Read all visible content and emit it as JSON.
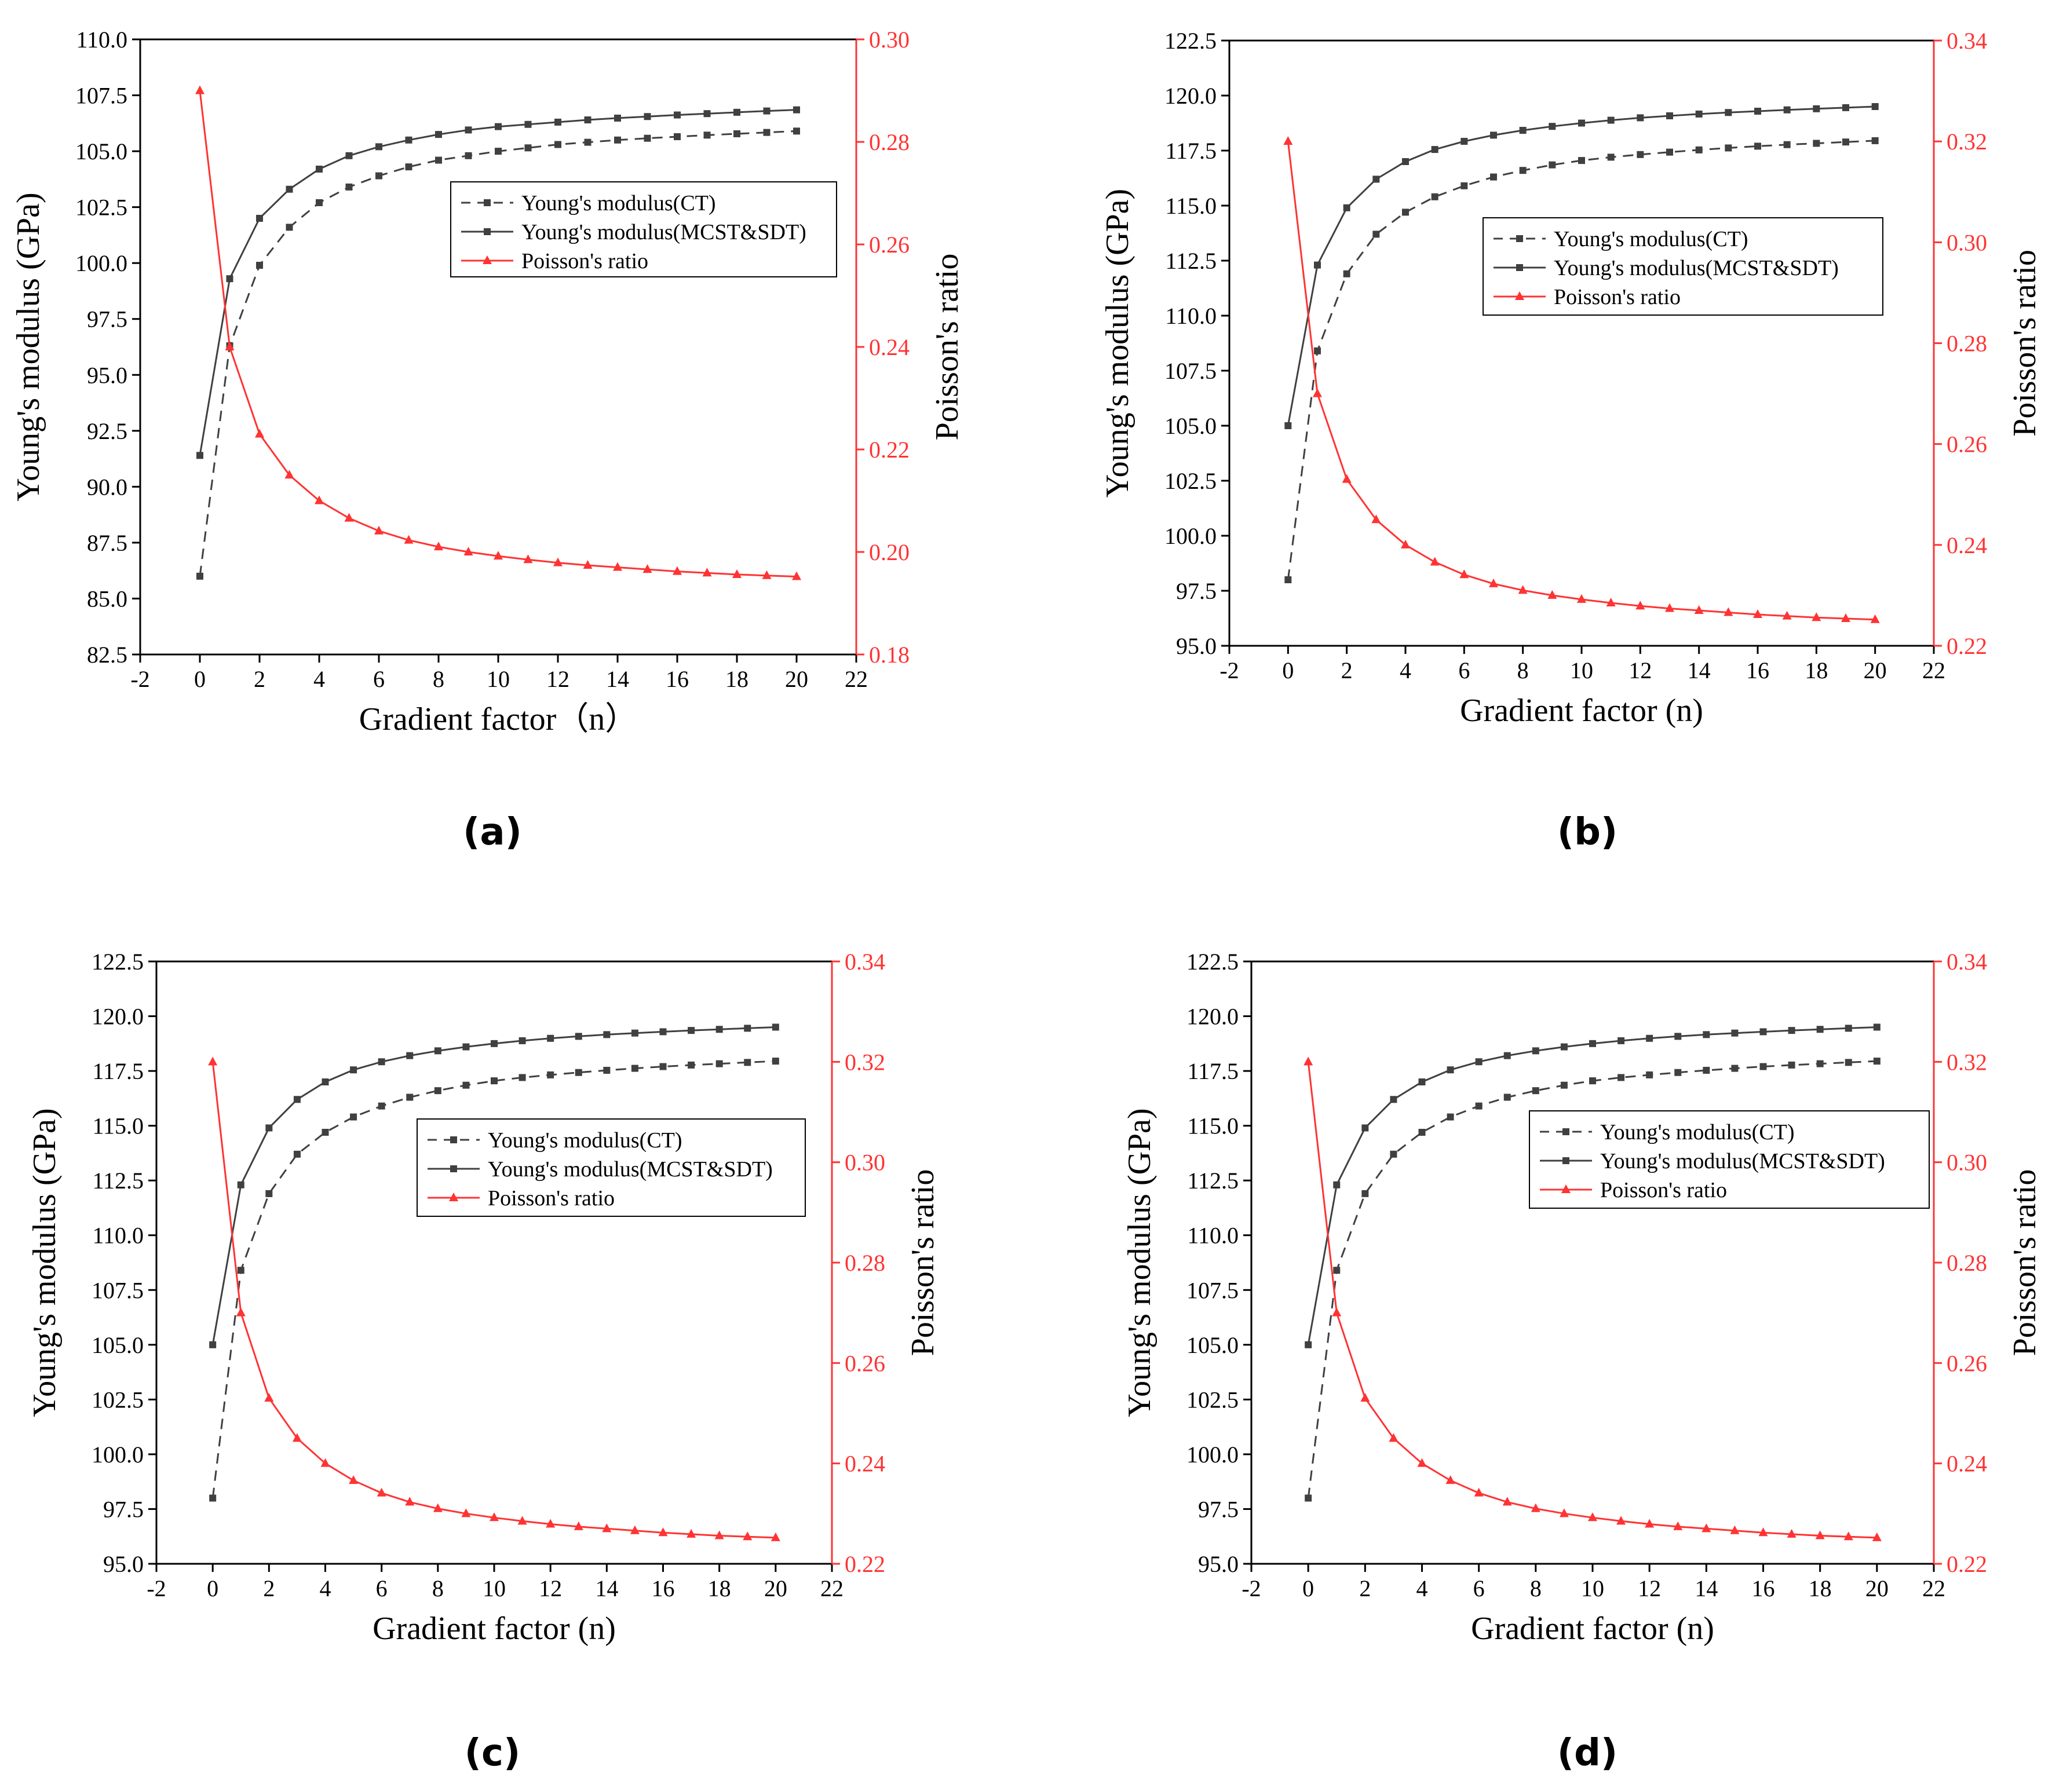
{
  "figure": {
    "captions": [
      "(a)",
      "(b)",
      "(c)",
      "(d)"
    ]
  },
  "chart_data": [
    {
      "id": "a",
      "type": "line",
      "xlabel": "Gradient factor（n）",
      "ylabel": "Young's modulus (GPa)",
      "y2label": "Poisson's ratio",
      "xlim": [
        -2,
        22
      ],
      "xticks": [
        -2,
        0,
        2,
        4,
        6,
        8,
        10,
        12,
        14,
        16,
        18,
        20,
        22
      ],
      "ylim": [
        82.5,
        110.0
      ],
      "yticks": [
        "82.5",
        "85.0",
        "87.5",
        "90.0",
        "92.5",
        "95.0",
        "97.5",
        "100.0",
        "102.5",
        "105.0",
        "107.5",
        "110.0"
      ],
      "y2lim": [
        0.18,
        0.3
      ],
      "y2ticks": [
        "0.18",
        "0.20",
        "0.22",
        "0.24",
        "0.26",
        "0.28",
        "0.30"
      ],
      "legend_position": "center-right",
      "x": [
        0,
        1,
        2,
        3,
        4,
        5,
        6,
        7,
        8,
        9,
        10,
        11,
        12,
        13,
        14,
        15,
        16,
        17,
        18,
        19,
        20
      ],
      "series": [
        {
          "name": "Young's modulus(CT)",
          "axis": "left",
          "style": "dashed",
          "marker": "square",
          "color": "#404040",
          "values": [
            86.0,
            96.3,
            99.9,
            101.6,
            102.7,
            103.4,
            103.9,
            104.3,
            104.6,
            104.8,
            105.0,
            105.15,
            105.3,
            105.4,
            105.5,
            105.58,
            105.65,
            105.72,
            105.78,
            105.84,
            105.9
          ]
        },
        {
          "name": "Young's modulus(MCST&SDT)",
          "axis": "left",
          "style": "solid",
          "marker": "square",
          "color": "#404040",
          "values": [
            91.4,
            99.3,
            102.0,
            103.3,
            104.2,
            104.8,
            105.2,
            105.5,
            105.75,
            105.95,
            106.1,
            106.2,
            106.3,
            106.4,
            106.48,
            106.55,
            106.62,
            106.68,
            106.74,
            106.8,
            106.85
          ]
        },
        {
          "name": "Poisson's ratio",
          "axis": "right",
          "style": "solid",
          "marker": "triangle",
          "color": "#ff3333",
          "values": [
            0.29,
            0.24,
            0.223,
            0.215,
            0.21,
            0.2066,
            0.2041,
            0.2023,
            0.201,
            0.2,
            0.1992,
            0.1985,
            0.1979,
            0.1974,
            0.197,
            0.1966,
            0.1962,
            0.1959,
            0.1956,
            0.1954,
            0.1952
          ]
        }
      ]
    },
    {
      "id": "b",
      "type": "line",
      "xlabel": "Gradient factor (n)",
      "ylabel": "Young's modulus (GPa)",
      "y2label": "Poisson's ratio",
      "xlim": [
        -2,
        22
      ],
      "xticks": [
        -2,
        0,
        2,
        4,
        6,
        8,
        10,
        12,
        14,
        16,
        18,
        20,
        22
      ],
      "ylim": [
        95.0,
        122.5
      ],
      "yticks": [
        "95.0",
        "97.5",
        "100.0",
        "102.5",
        "105.0",
        "107.5",
        "110.0",
        "112.5",
        "115.0",
        "117.5",
        "120.0",
        "122.5"
      ],
      "y2lim": [
        0.22,
        0.34
      ],
      "y2ticks": [
        "0.22",
        "0.24",
        "0.26",
        "0.28",
        "0.30",
        "0.32",
        "0.34"
      ],
      "legend_position": "center-right",
      "x": [
        0,
        1,
        2,
        3,
        4,
        5,
        6,
        7,
        8,
        9,
        10,
        11,
        12,
        13,
        14,
        15,
        16,
        17,
        18,
        19,
        20
      ],
      "series": [
        {
          "name": "Young's modulus(CT)",
          "axis": "left",
          "style": "dashed",
          "marker": "square",
          "color": "#404040",
          "values": [
            98.0,
            108.4,
            111.9,
            113.7,
            114.7,
            115.4,
            115.9,
            116.3,
            116.6,
            116.85,
            117.05,
            117.2,
            117.32,
            117.43,
            117.53,
            117.62,
            117.7,
            117.77,
            117.83,
            117.89,
            117.95
          ]
        },
        {
          "name": "Young's modulus(MCST&SDT)",
          "axis": "left",
          "style": "solid",
          "marker": "square",
          "color": "#404040",
          "values": [
            105.0,
            112.3,
            114.9,
            116.2,
            117.0,
            117.55,
            117.92,
            118.2,
            118.42,
            118.6,
            118.75,
            118.88,
            118.99,
            119.08,
            119.16,
            119.23,
            119.29,
            119.35,
            119.4,
            119.45,
            119.5
          ]
        },
        {
          "name": "Poisson's ratio",
          "axis": "right",
          "style": "solid",
          "marker": "triangle",
          "color": "#ff3333",
          "values": [
            0.32,
            0.27,
            0.253,
            0.245,
            0.24,
            0.2366,
            0.2341,
            0.2323,
            0.231,
            0.23,
            0.2292,
            0.2285,
            0.2279,
            0.2274,
            0.227,
            0.2266,
            0.2262,
            0.2259,
            0.2256,
            0.2254,
            0.2252
          ]
        }
      ]
    },
    {
      "id": "c",
      "type": "line",
      "xlabel": "Gradient factor (n)",
      "ylabel": "Young's modulus (GPa)",
      "y2label": "Poisson's ratio",
      "xlim": [
        -2,
        22
      ],
      "xticks": [
        -2,
        0,
        2,
        4,
        6,
        8,
        10,
        12,
        14,
        16,
        18,
        20,
        22
      ],
      "ylim": [
        95.0,
        122.5
      ],
      "yticks": [
        "95.0",
        "97.5",
        "100.0",
        "102.5",
        "105.0",
        "107.5",
        "110.0",
        "112.5",
        "115.0",
        "117.5",
        "120.0",
        "122.5"
      ],
      "y2lim": [
        0.22,
        0.34
      ],
      "y2ticks": [
        "0.22",
        "0.24",
        "0.26",
        "0.28",
        "0.30",
        "0.32",
        "0.34"
      ],
      "legend_position": "center-right",
      "x": [
        0,
        1,
        2,
        3,
        4,
        5,
        6,
        7,
        8,
        9,
        10,
        11,
        12,
        13,
        14,
        15,
        16,
        17,
        18,
        19,
        20
      ],
      "series": [
        {
          "name": "Young's modulus(CT)",
          "axis": "left",
          "style": "dashed",
          "marker": "square",
          "color": "#404040",
          "values": [
            98.0,
            108.4,
            111.9,
            113.7,
            114.7,
            115.4,
            115.9,
            116.3,
            116.6,
            116.85,
            117.05,
            117.2,
            117.32,
            117.43,
            117.53,
            117.62,
            117.7,
            117.77,
            117.83,
            117.89,
            117.95
          ]
        },
        {
          "name": "Young's modulus(MCST&SDT)",
          "axis": "left",
          "style": "solid",
          "marker": "square",
          "color": "#404040",
          "values": [
            105.0,
            112.3,
            114.9,
            116.2,
            117.0,
            117.55,
            117.92,
            118.2,
            118.42,
            118.6,
            118.75,
            118.88,
            118.99,
            119.08,
            119.16,
            119.23,
            119.29,
            119.35,
            119.4,
            119.45,
            119.5
          ]
        },
        {
          "name": "Poisson's ratio",
          "axis": "right",
          "style": "solid",
          "marker": "triangle",
          "color": "#ff3333",
          "values": [
            0.32,
            0.27,
            0.253,
            0.245,
            0.24,
            0.2366,
            0.2341,
            0.2323,
            0.231,
            0.23,
            0.2292,
            0.2285,
            0.2279,
            0.2274,
            0.227,
            0.2266,
            0.2262,
            0.2259,
            0.2256,
            0.2254,
            0.2252
          ]
        }
      ]
    },
    {
      "id": "d",
      "type": "line",
      "xlabel": "Gradient factor (n)",
      "ylabel": "Young's modulus (GPa)",
      "y2label": "Poisson's ratio",
      "xlim": [
        -2,
        22
      ],
      "xticks": [
        -2,
        0,
        2,
        4,
        6,
        8,
        10,
        12,
        14,
        16,
        18,
        20,
        22
      ],
      "ylim": [
        95.0,
        122.5
      ],
      "yticks": [
        "95.0",
        "97.5",
        "100.0",
        "102.5",
        "105.0",
        "107.5",
        "110.0",
        "112.5",
        "115.0",
        "117.5",
        "120.0",
        "122.5"
      ],
      "y2lim": [
        0.22,
        0.34
      ],
      "y2ticks": [
        "0.22",
        "0.24",
        "0.26",
        "0.28",
        "0.30",
        "0.32",
        "0.34"
      ],
      "legend_position": "center-right",
      "x": [
        0,
        1,
        2,
        3,
        4,
        5,
        6,
        7,
        8,
        9,
        10,
        11,
        12,
        13,
        14,
        15,
        16,
        17,
        18,
        19,
        20
      ],
      "series": [
        {
          "name": "Young's modulus(CT)",
          "axis": "left",
          "style": "dashed",
          "marker": "square",
          "color": "#404040",
          "values": [
            98.0,
            108.4,
            111.9,
            113.7,
            114.7,
            115.4,
            115.9,
            116.3,
            116.6,
            116.85,
            117.05,
            117.2,
            117.32,
            117.43,
            117.53,
            117.62,
            117.7,
            117.77,
            117.83,
            117.89,
            117.95
          ]
        },
        {
          "name": "Young's modulus(MCST&SDT)",
          "axis": "left",
          "style": "solid",
          "marker": "square",
          "color": "#404040",
          "values": [
            105.0,
            112.3,
            114.9,
            116.2,
            117.0,
            117.55,
            117.92,
            118.2,
            118.42,
            118.6,
            118.75,
            118.88,
            118.99,
            119.08,
            119.16,
            119.23,
            119.29,
            119.35,
            119.4,
            119.45,
            119.5
          ]
        },
        {
          "name": "Poisson's ratio",
          "axis": "right",
          "style": "solid",
          "marker": "triangle",
          "color": "#ff3333",
          "values": [
            0.32,
            0.27,
            0.253,
            0.245,
            0.24,
            0.2366,
            0.2341,
            0.2323,
            0.231,
            0.23,
            0.2292,
            0.2285,
            0.2279,
            0.2274,
            0.227,
            0.2266,
            0.2262,
            0.2259,
            0.2256,
            0.2254,
            0.2252
          ]
        }
      ]
    }
  ]
}
